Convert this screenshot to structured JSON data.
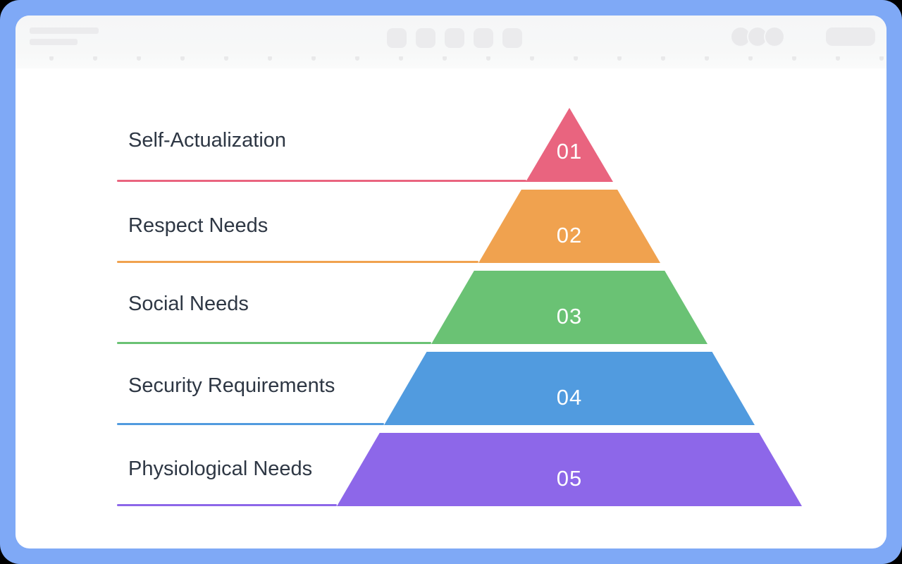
{
  "colors": {
    "frame_blue": "#7FA9F6",
    "window_bg": "#FFFFFF",
    "header_bg": "#F6F7F8",
    "chrome_placeholder": "#EBEBED",
    "label_text": "#2E3744",
    "number_text": "#FFFFFF"
  },
  "chart_data": {
    "type": "pyramid",
    "orientation": "apex-top",
    "levels": [
      {
        "number": "01",
        "label": "Self-Actualization",
        "color": "#E9647F"
      },
      {
        "number": "02",
        "label": "Respect Needs",
        "color": "#F0A24F"
      },
      {
        "number": "03",
        "label": "Social Needs",
        "color": "#6AC274"
      },
      {
        "number": "04",
        "label": "Security Requirements",
        "color": "#519BDF"
      },
      {
        "number": "05",
        "label": "Physiological Needs",
        "color": "#8D67E9"
      }
    ]
  }
}
